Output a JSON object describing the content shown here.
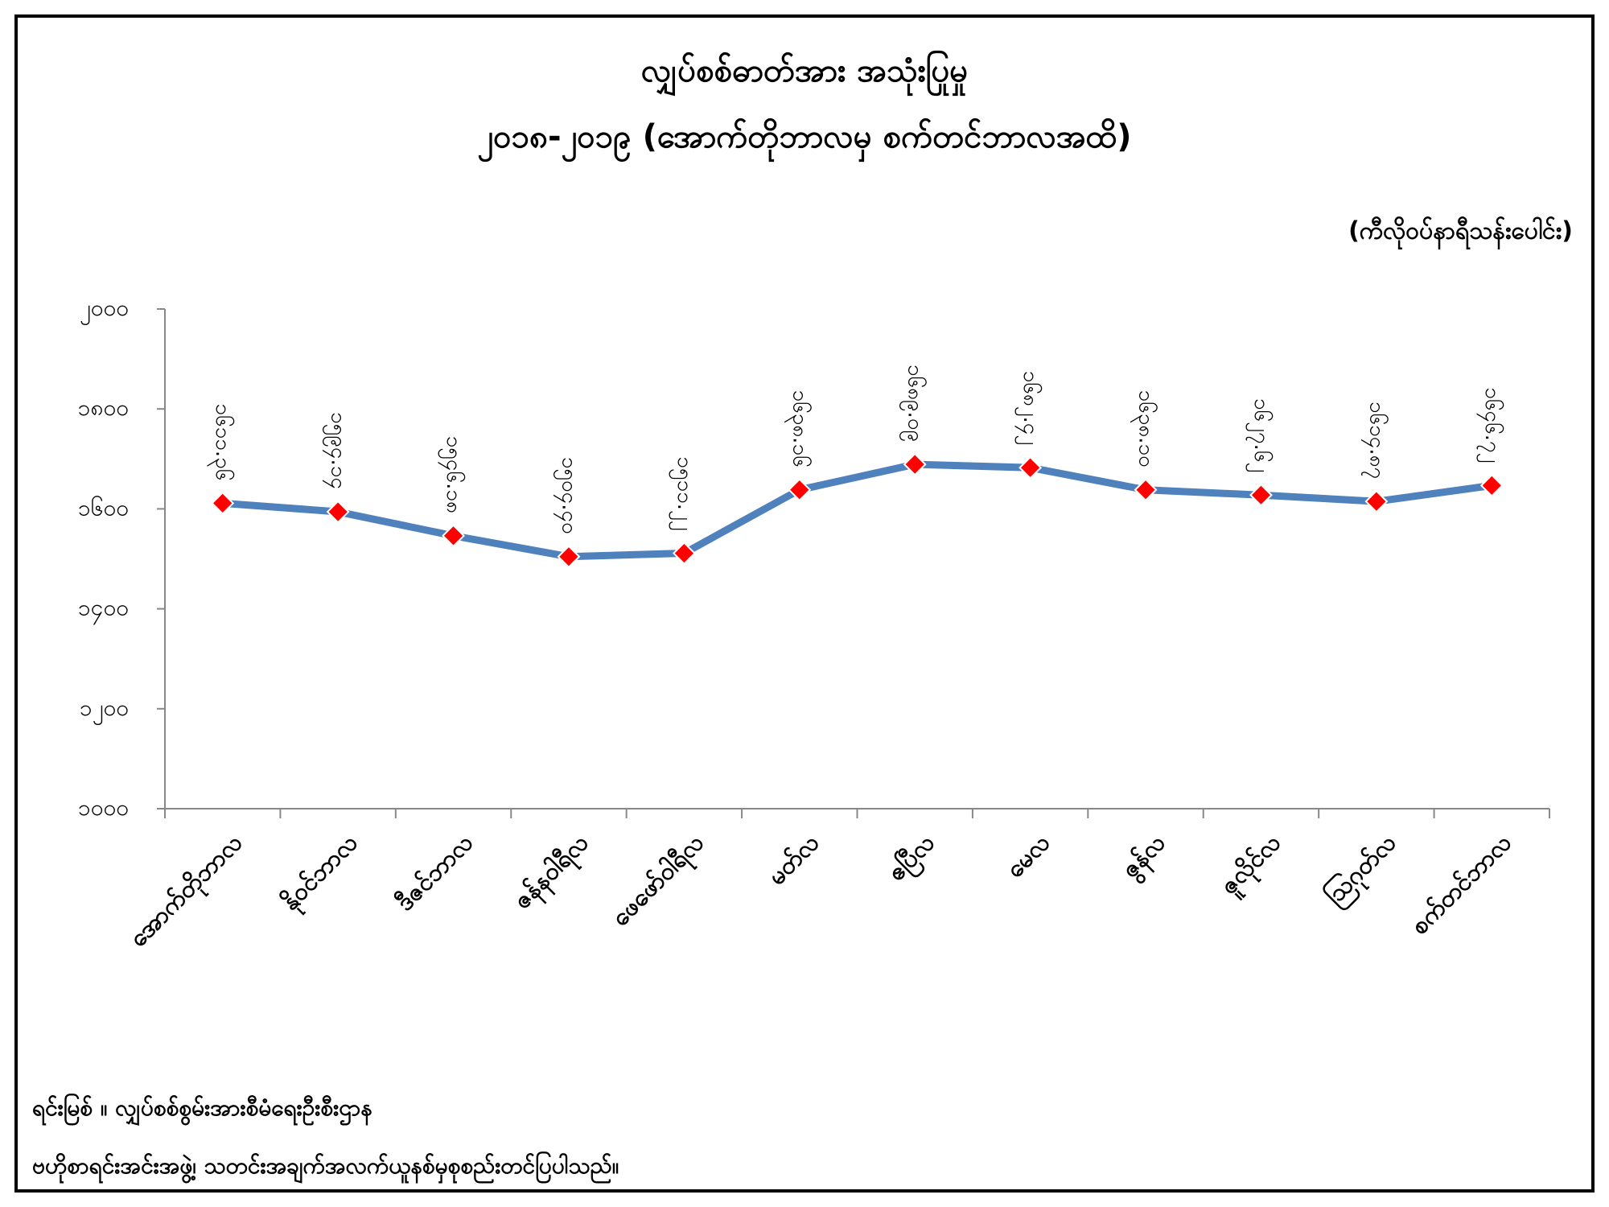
{
  "chart_data": {
    "type": "line",
    "title": "လျှပ်စစ်ဓာတ်အား အသုံးပြုမှု",
    "subtitle": "၂၀၁၈-၂၀၁၉ (အောက်တိုဘာလမှ စက်တင်ဘာလအထိ)",
    "unit_label": "(ကီလိုဝပ်နာရီသန်းပေါင်း)",
    "categories": [
      "အောက်တိုဘာလ",
      "နိုဝင်ဘာလ",
      "ဒီဇင်ဘာလ",
      "ဇန်နဝါရီလ",
      "ဖေဖော်ဝါရီလ",
      "မတ်လ",
      "ဧပြီလ",
      "မေလ",
      "ဇွန်လ",
      "ဇူလိုင်လ",
      "ဩဂုတ်လ",
      "စက်တင်ဘာလ"
    ],
    "values": [
      1611.36,
      1594.14,
      1546.18,
      1504.4,
      1511.22,
      1638.16,
      1689.09,
      1682.42,
      1638.1,
      1627.62,
      1614.87,
      1646.72
    ],
    "value_labels": [
      "၁၆၁၁.၃၆",
      "၁၅၉၄.၁၄",
      "၁၅၄၆.၁၈",
      "၁၅၀၄.၄၀",
      "၁၅၁၁.၂၂",
      "၁၆၃၈.၁၆",
      "၁၆၈၉.၀၉",
      "၁၆၈၂.၄၂",
      "၁၆၃၈.၁၀",
      "၁၆၂၇.၆၂",
      "၁၆၁၄.၈၇",
      "၁၆၄၆.၇၂"
    ],
    "color": "#4f81bd",
    "marker_color": "#ff0000",
    "ylim": [
      1000,
      2000
    ],
    "yticks": [
      {
        "value": 1000,
        "label": "၁၀၀၀"
      },
      {
        "value": 1200,
        "label": "၁၂၀၀"
      },
      {
        "value": 1400,
        "label": "၁၄၀၀"
      },
      {
        "value": 1600,
        "label": "၁၆၀၀"
      },
      {
        "value": 1800,
        "label": "၁၈၀၀"
      },
      {
        "value": 2000,
        "label": "၂၀၀၀"
      }
    ],
    "grid": false,
    "source_lines": [
      "ရင်းမြစ် ။ လျှပ်စစ်စွမ်းအားစီမံရေးဦးစီးဌာန",
      "ဗဟိုစာရင်းအင်းအဖွဲ့၊ သတင်းအချက်အလက်ယူနစ်မှစုစည်းတင်ပြပါသည်။"
    ]
  }
}
